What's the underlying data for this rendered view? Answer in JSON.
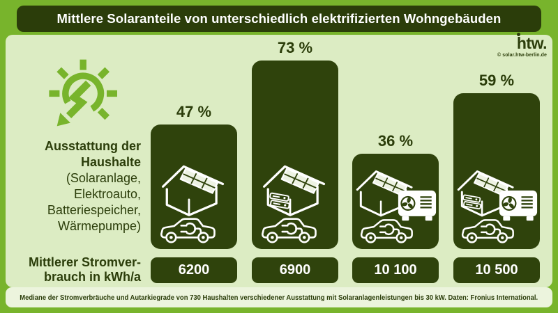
{
  "title": "Mittlere Solaranteile von unterschiedlich elektrifizierten Wohngebäuden",
  "logo": {
    "text": "htw.",
    "subtext": "© solar.htw-berlin.de"
  },
  "left_panel": {
    "equipment_bold": "Ausstattung der\nHaushalte",
    "equipment_detail": "(Solaranlage,\nElektroauto,\nBatteriespeicher,\nWärmepumpe)",
    "consumption_label": "Mittlerer Stromver-\nbrauch in kWh/a"
  },
  "footer": "Mediane der Stromverbräuche und Autarkiegrade von 730 Haushalten verschiedener Ausstattung mit Solaranlagenleistungen bis 30 kW. Daten: Fronius International.",
  "colors": {
    "frame_green": "#78b42c",
    "dark_green": "#2f430c",
    "title_bar_green": "#2b3d0a",
    "panel_bg": "#dcecc3",
    "footer_bg": "#ecf4dd",
    "icon_white": "#ffffff"
  },
  "chart_data": {
    "type": "bar",
    "title": "Mittlere Solaranteile von unterschiedlich elektrifizierten Wohngebäuden",
    "unit": "%",
    "ylim": [
      0,
      100
    ],
    "grid": false,
    "categories": [
      "Solaranlage + Elektroauto",
      "Solaranlage + Elektroauto + Batteriespeicher",
      "Solaranlage + Elektroauto + Wärmepumpe",
      "Solaranlage + Elektroauto + Batteriespeicher + Wärmepumpe"
    ],
    "values": [
      47,
      73,
      36,
      59
    ],
    "bars": [
      {
        "percent_label": "47 %",
        "value": 47,
        "consumption": "6200",
        "equipment_icons": [
          "solar-house-icon",
          "ev-car-icon"
        ]
      },
      {
        "percent_label": "73 %",
        "value": 73,
        "consumption": "6900",
        "equipment_icons": [
          "solar-house-icon",
          "battery-icon",
          "ev-car-icon"
        ]
      },
      {
        "percent_label": "36 %",
        "value": 36,
        "consumption": "10 100",
        "equipment_icons": [
          "solar-house-icon",
          "heat-pump-icon",
          "ev-car-icon"
        ]
      },
      {
        "percent_label": "59 %",
        "value": 59,
        "consumption": "10 500",
        "equipment_icons": [
          "solar-house-icon",
          "battery-icon",
          "heat-pump-icon",
          "ev-car-icon"
        ]
      }
    ],
    "secondary_row_label": "Mittlerer Stromverbrauch in kWh/a",
    "secondary_values": [
      "6200",
      "6900",
      "10 100",
      "10 500"
    ]
  }
}
